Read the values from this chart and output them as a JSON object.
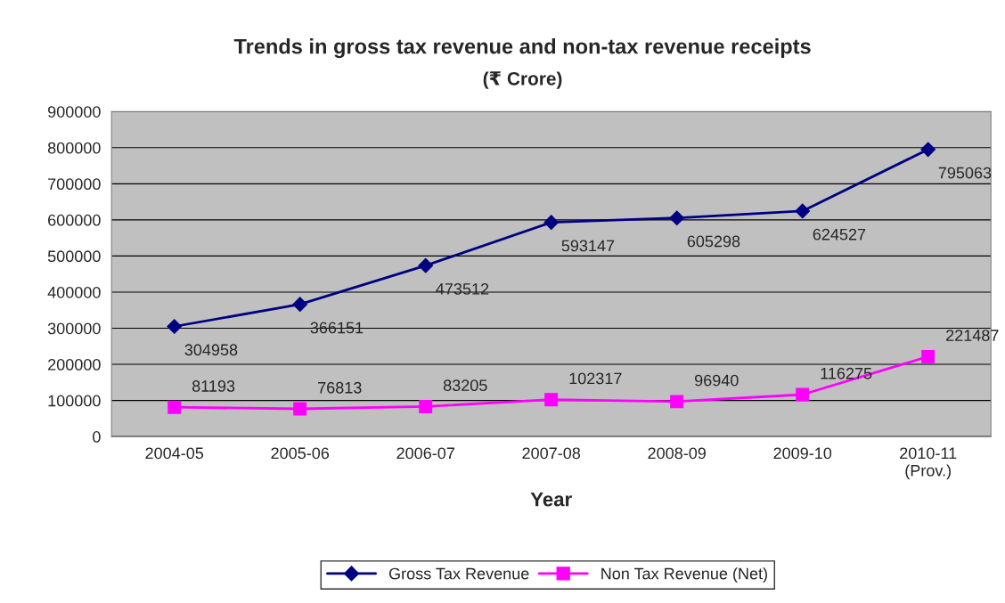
{
  "chart_data": {
    "type": "line",
    "title": "Trends in gross tax revenue and non-tax revenue receipts",
    "subtitle": "(₹ Crore)",
    "xlabel": "Year",
    "categories": [
      "2004-05",
      "2005-06",
      "2006-07",
      "2007-08",
      "2008-09",
      "2009-10",
      "2010-11\n(Prov.)"
    ],
    "series": [
      {
        "name": "Gross Tax Revenue",
        "color": "#000080",
        "marker": "diamond",
        "values": [
          304958,
          366151,
          473512,
          593147,
          605298,
          624527,
          795063
        ]
      },
      {
        "name": "Non Tax Revenue (Net)",
        "color": "#ff00ff",
        "marker": "square",
        "values": [
          81193,
          76813,
          83205,
          102317,
          96940,
          116275,
          221487
        ]
      }
    ],
    "ylim": [
      0,
      900000
    ],
    "yticks": [
      0,
      100000,
      200000,
      300000,
      400000,
      500000,
      600000,
      700000,
      800000,
      900000
    ],
    "grid": "y",
    "legend": "bottom",
    "data_labels": true,
    "line_style": "solid"
  }
}
